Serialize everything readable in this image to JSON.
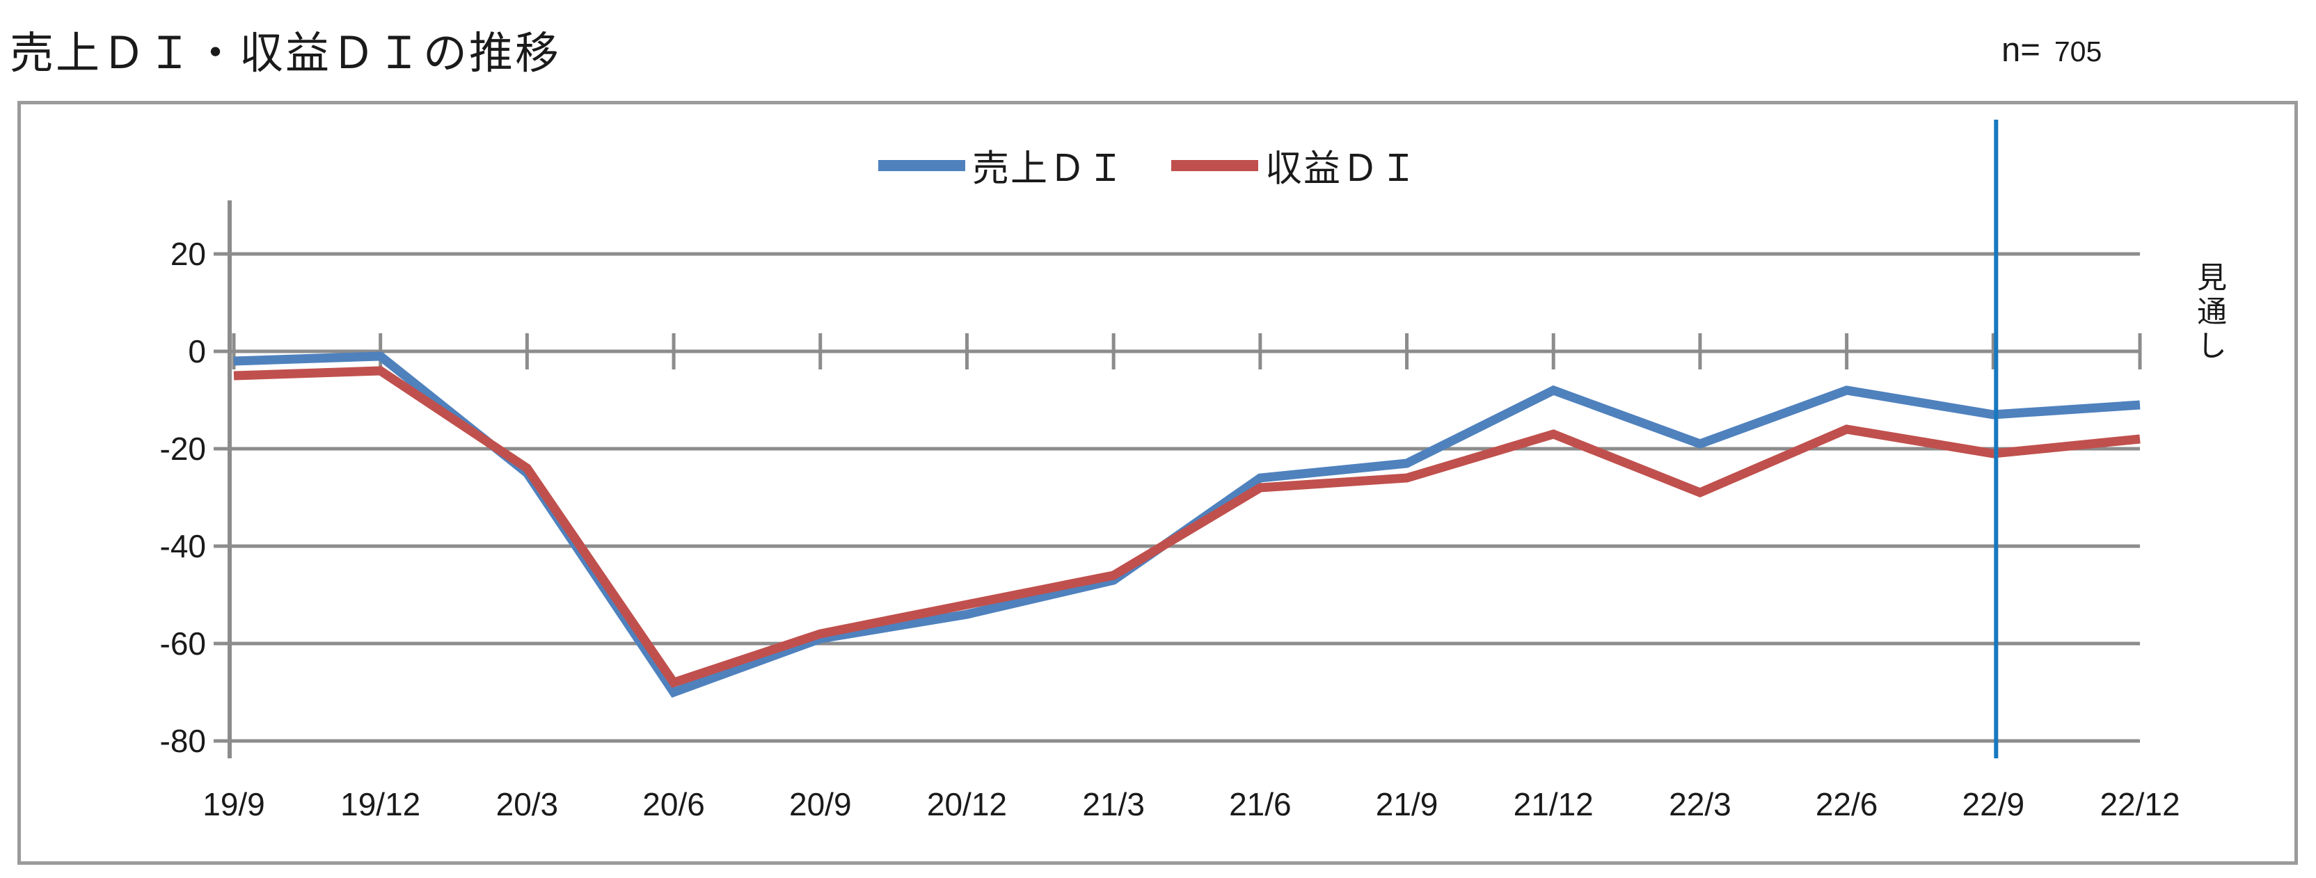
{
  "chart_data": {
    "type": "line",
    "title": "売上ＤＩ・収益ＤＩの推移",
    "sample": {
      "label": "n=",
      "value": "705"
    },
    "categories": [
      "19/9",
      "19/12",
      "20/3",
      "20/6",
      "20/9",
      "20/12",
      "21/3",
      "21/6",
      "21/9",
      "21/12",
      "22/3",
      "22/6",
      "22/9",
      "22/12"
    ],
    "series": [
      {
        "name": "売上ＤＩ",
        "color": "#4F81BD",
        "values": [
          -2,
          -1,
          -25,
          -70,
          -59,
          -54,
          -47,
          -26,
          -23,
          -8,
          -19,
          -8,
          -13,
          -11
        ]
      },
      {
        "name": "収益ＤＩ",
        "color": "#C0504D",
        "values": [
          -5,
          -4,
          -24,
          -68,
          -58,
          -52,
          -46,
          -28,
          -26,
          -17,
          -29,
          -16,
          -21,
          -18
        ]
      }
    ],
    "ylim": [
      -80,
      20
    ],
    "y_ticks": [
      20,
      0,
      -20,
      -40,
      -60,
      -80
    ],
    "grid": true,
    "legend_position": "top-center",
    "forecast": {
      "label": "見通し",
      "at_category": "22/9",
      "line_color": "#1878BE"
    },
    "axis_color": "#8c8c8c",
    "frame_color": "#9b9b9b"
  }
}
